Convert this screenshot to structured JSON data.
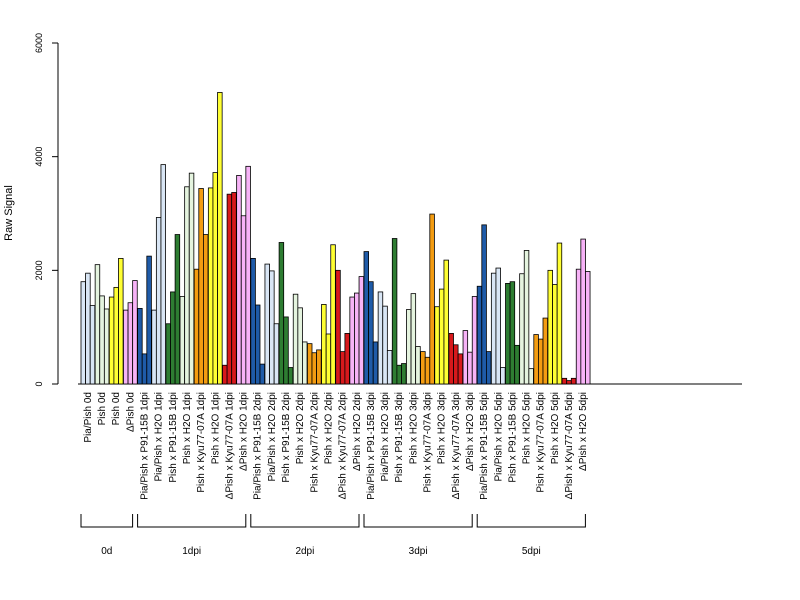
{
  "chart_data": {
    "type": "bar",
    "ylabel": "Raw Signal",
    "ylim": [
      0,
      6000
    ],
    "yticks": [
      0,
      2000,
      4000,
      6000
    ],
    "grid": false,
    "legend": "none",
    "colors": {
      "light_blue": "#d9e6f5",
      "light_green": "#e5f4df",
      "yellow": "#ffff33",
      "pink": "#f7b3f7",
      "dark_blue": "#1f5ba8",
      "dark_green": "#2e7d32",
      "orange": "#f39c12",
      "red": "#d7191c"
    },
    "categories": [
      {
        "label": "Pia/Pish 0d",
        "color": "light_blue",
        "values": [
          1800,
          1950,
          1380
        ]
      },
      {
        "label": "Pish 0d",
        "color": "light_green",
        "values": [
          2100,
          1550,
          1320
        ]
      },
      {
        "label": "Pish 0d",
        "color": "yellow",
        "values": [
          1530,
          1700,
          2210
        ]
      },
      {
        "label": "ΔPish 0d",
        "color": "pink",
        "values": [
          1300,
          1430,
          1820
        ]
      },
      {
        "label": "Pia/Pish x P91-15B 1dpi",
        "color": "dark_blue",
        "values": [
          1330,
          530,
          2250
        ]
      },
      {
        "label": "Pia/Pish x H2O 1dpi",
        "color": "light_blue",
        "values": [
          1300,
          2930,
          3860
        ]
      },
      {
        "label": "Pish x P91-15B 1dpi",
        "color": "dark_green",
        "values": [
          1060,
          1620,
          2630
        ]
      },
      {
        "label": "Pish x H2O 1dpi",
        "color": "light_green",
        "values": [
          1540,
          3470,
          3710
        ]
      },
      {
        "label": "Pish x Kyu77-07A 1dpi",
        "color": "orange",
        "values": [
          2020,
          3440,
          2630
        ]
      },
      {
        "label": "Pish x H2O 1dpi",
        "color": "yellow",
        "values": [
          3450,
          3720,
          5130
        ]
      },
      {
        "label": "ΔPish x Kyu77-07A 1dpi",
        "color": "red",
        "values": [
          330,
          3340,
          3370
        ]
      },
      {
        "label": "ΔPish x H2O 1dpi",
        "color": "pink",
        "values": [
          3670,
          2960,
          3830
        ]
      },
      {
        "label": "Pia/Pish x P91-15B 2dpi",
        "color": "dark_blue",
        "values": [
          2210,
          1390,
          350
        ]
      },
      {
        "label": "Pia/Pish x H2O 2dpi",
        "color": "light_blue",
        "values": [
          2110,
          1990,
          1060
        ]
      },
      {
        "label": "Pish x P91-15B 2dpi",
        "color": "dark_green",
        "values": [
          2490,
          1180,
          290
        ]
      },
      {
        "label": "Pish x H2O 2dpi",
        "color": "light_green",
        "values": [
          1580,
          1340,
          740
        ]
      },
      {
        "label": "Pish x Kyu77-07A 2dpi",
        "color": "orange",
        "values": [
          710,
          550,
          600
        ]
      },
      {
        "label": "Pish x H2O 2dpi",
        "color": "yellow",
        "values": [
          1400,
          880,
          2450
        ]
      },
      {
        "label": "ΔPish x Kyu77-07A 2dpi",
        "color": "red",
        "values": [
          2000,
          570,
          890
        ]
      },
      {
        "label": "ΔPish x H2O 2dpi",
        "color": "pink",
        "values": [
          1530,
          1600,
          1890
        ]
      },
      {
        "label": "Pia/Pish x P91-15B 3dpi",
        "color": "dark_blue",
        "values": [
          2330,
          1800,
          740
        ]
      },
      {
        "label": "Pia/Pish x H2O 3dpi",
        "color": "light_blue",
        "values": [
          1620,
          1370,
          590
        ]
      },
      {
        "label": "Pish x P91-15B 3dpi",
        "color": "dark_green",
        "values": [
          2560,
          330,
          360
        ]
      },
      {
        "label": "Pish x H2O 3dpi",
        "color": "light_green",
        "values": [
          1310,
          1590,
          660
        ]
      },
      {
        "label": "Pish x Kyu77-07A 3dpi",
        "color": "orange",
        "values": [
          570,
          470,
          2990
        ]
      },
      {
        "label": "Pish x H2O 3dpi",
        "color": "yellow",
        "values": [
          1360,
          1670,
          2180
        ]
      },
      {
        "label": "ΔPish x Kyu77-07A 3dpi",
        "color": "red",
        "values": [
          890,
          690,
          530
        ]
      },
      {
        "label": "ΔPish x H2O 3dpi",
        "color": "pink",
        "values": [
          940,
          560,
          1540
        ]
      },
      {
        "label": "Pia/Pish x P91-15B 5dpi",
        "color": "dark_blue",
        "values": [
          1720,
          2800,
          570
        ]
      },
      {
        "label": "Pia/Pish x H2O 5dpi",
        "color": "light_blue",
        "values": [
          1950,
          2040,
          290
        ]
      },
      {
        "label": "Pish x P91-15B 5dpi",
        "color": "dark_green",
        "values": [
          1770,
          1800,
          680
        ]
      },
      {
        "label": "Pish x H2O 5dpi",
        "color": "light_green",
        "values": [
          1940,
          2350,
          270
        ]
      },
      {
        "label": "Pish x Kyu77-07A 5dpi",
        "color": "orange",
        "values": [
          870,
          790,
          1160
        ]
      },
      {
        "label": "Pish x H2O 5dpi",
        "color": "yellow",
        "values": [
          2000,
          1750,
          2480
        ]
      },
      {
        "label": "ΔPish x Kyu77-07A 5dpi",
        "color": "red",
        "values": [
          100,
          60,
          100
        ]
      },
      {
        "label": "ΔPish x H2O 5dpi",
        "color": "pink",
        "values": [
          2020,
          2550,
          1980
        ]
      }
    ],
    "groups": [
      {
        "label": "0d",
        "start": 0,
        "end": 3
      },
      {
        "label": "1dpi",
        "start": 4,
        "end": 11
      },
      {
        "label": "2dpi",
        "start": 12,
        "end": 19
      },
      {
        "label": "3dpi",
        "start": 20,
        "end": 27
      },
      {
        "label": "5dpi",
        "start": 28,
        "end": 35
      }
    ]
  }
}
